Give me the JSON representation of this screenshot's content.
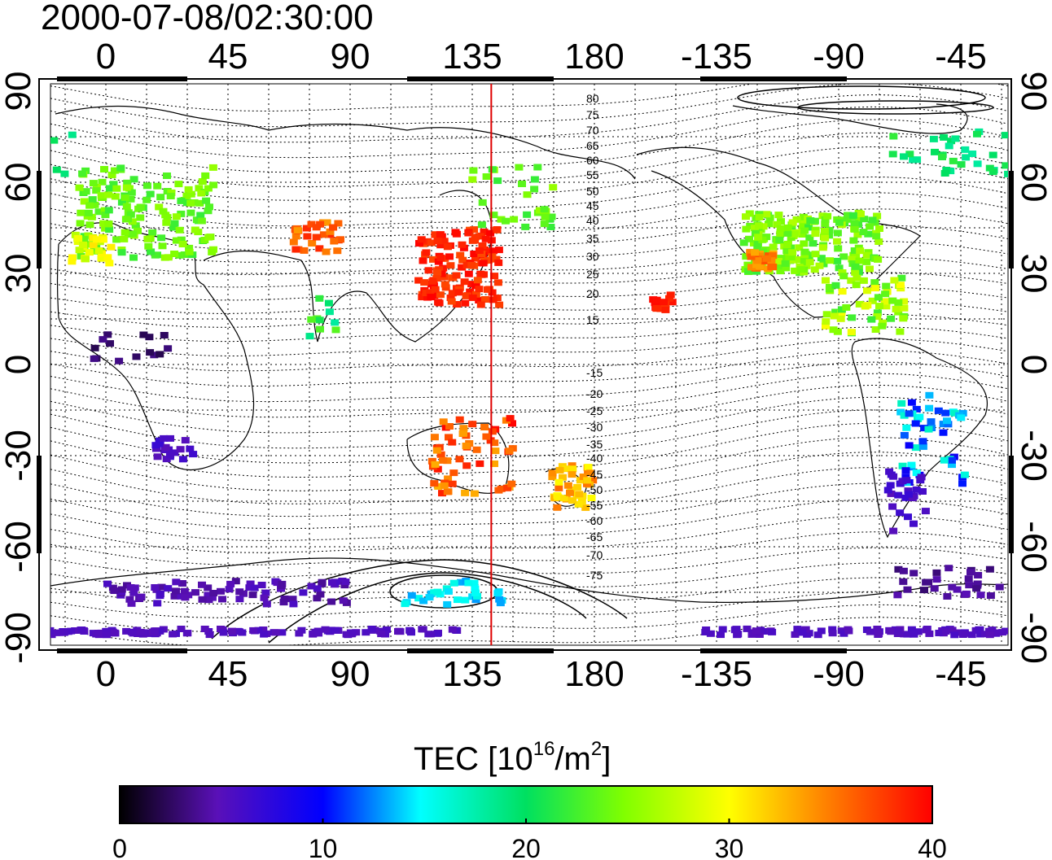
{
  "title": "2000-07-08/02:30:00",
  "map": {
    "lon_ticks": [
      "0",
      "45",
      "90",
      "135",
      "180",
      "-135",
      "-90",
      "-45"
    ],
    "lat_ticks_left": [
      "90",
      "60",
      "30",
      "0",
      "-30",
      "-60",
      "-90"
    ],
    "lat_ticks_right": [
      "90",
      "60",
      "30",
      "0",
      "-30",
      "-60",
      "-90"
    ],
    "local_time_marker_longitude": 142,
    "marker_color": "#e00000",
    "contour_labels": [
      "80",
      "75",
      "70",
      "65",
      "60",
      "55",
      "50",
      "45",
      "40",
      "35",
      "30",
      "25",
      "20",
      "15",
      "-15",
      "-20",
      "-25",
      "-30",
      "-35",
      "-40",
      "-45",
      "-50",
      "-55",
      "-60",
      "-65",
      "-70",
      "-75"
    ]
  },
  "colorbar": {
    "label_prefix": "TEC  [10",
    "label_sup1": "16",
    "label_mid": "/m",
    "label_sup2": "2",
    "label_suffix": "]",
    "ticks": [
      "0",
      "10",
      "20",
      "30",
      "40"
    ],
    "min": 0,
    "max": 40
  },
  "colors": {
    "c0": "#000000",
    "c5": "#5a10b8",
    "c10": "#0000ff",
    "c15": "#00ffff",
    "c20": "#00e060",
    "c25": "#80ff00",
    "c30": "#ffff00",
    "c35": "#ff8000",
    "c40": "#ff0000"
  }
}
